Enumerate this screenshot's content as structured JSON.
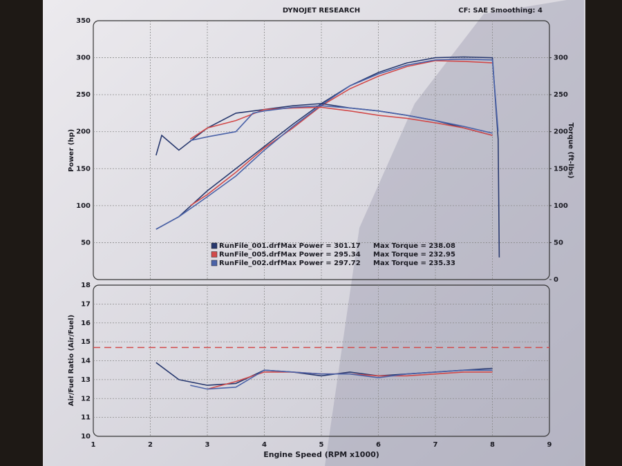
{
  "chart_data": [
    {
      "type": "line",
      "title": "DYNOJET RESEARCH",
      "subtitle": "CF: SAE  Smoothing: 4",
      "y_label": "Power (hp)",
      "y2_label": "Torque (ft-lbs)",
      "xlim": [
        1,
        9
      ],
      "ylim": [
        0,
        350
      ],
      "yticks": [
        50,
        100,
        150,
        200,
        250,
        300,
        350
      ],
      "y2lim": [
        0,
        350
      ],
      "y2ticks": [
        0,
        50,
        100,
        150,
        200,
        250,
        300
      ],
      "grid": true,
      "series": [
        {
          "color": "#27386e",
          "x": [
            2.1,
            2.5,
            3,
            3.5,
            4,
            4.5,
            5,
            5.5,
            6,
            6.5,
            7,
            7.5,
            8,
            8.1,
            8.12
          ],
          "values": [
            68,
            85,
            120,
            150,
            180,
            210,
            238,
            262,
            280,
            293,
            300,
            301,
            300,
            190,
            30
          ]
        },
        {
          "color": "#d24a4a",
          "x": [
            2.7,
            3,
            3.5,
            4,
            4.5,
            5,
            5.5,
            6,
            6.5,
            7,
            7.5,
            8
          ],
          "values": [
            100,
            115,
            145,
            178,
            205,
            235,
            258,
            275,
            288,
            296,
            295,
            293
          ]
        },
        {
          "color": "#4a62a8",
          "x": [
            2.1,
            2.5,
            3,
            3.5,
            4,
            4.5,
            5,
            5.5,
            6,
            6.5,
            7,
            7.5,
            8,
            8.1
          ],
          "values": [
            68,
            85,
            112,
            140,
            175,
            207,
            236,
            262,
            278,
            290,
            297,
            298,
            297,
            200
          ]
        },
        {
          "color": "#27386e",
          "axis": "y2",
          "x": [
            2.1,
            2.2,
            2.5,
            3,
            3.5,
            4,
            4.5,
            5,
            5.5,
            6,
            6.5,
            7,
            7.5,
            8
          ],
          "values": [
            168,
            195,
            175,
            205,
            225,
            230,
            235,
            238,
            232,
            228,
            222,
            215,
            205,
            195
          ]
        },
        {
          "color": "#d24a4a",
          "axis": "y2",
          "x": [
            2.7,
            3,
            3.5,
            4,
            4.5,
            5,
            5.5,
            6,
            6.5,
            7,
            7.5,
            8
          ],
          "values": [
            190,
            205,
            215,
            230,
            232,
            233,
            228,
            222,
            218,
            212,
            205,
            195
          ]
        },
        {
          "color": "#4a62a8",
          "axis": "y2",
          "x": [
            2.7,
            3,
            3.5,
            3.8,
            4,
            4.5,
            5,
            5.5,
            6,
            6.5,
            7,
            7.5,
            8
          ],
          "values": [
            188,
            193,
            200,
            225,
            228,
            233,
            235,
            232,
            228,
            222,
            215,
            207,
            198
          ]
        }
      ],
      "legend": [
        {
          "name": "RunFile_001.drf",
          "power": "Max Power = 301.17",
          "torque": "Max Torque = 238.08",
          "color": "#27386e"
        },
        {
          "name": "RunFile_005.drf",
          "power": "Max Power = 295.34",
          "torque": "Max Torque = 232.95",
          "color": "#d24a4a"
        },
        {
          "name": "RunFile_002.drf",
          "power": "Max Power = 297.72",
          "torque": "Max Torque = 235.33",
          "color": "#4a62a8"
        }
      ]
    },
    {
      "type": "line",
      "x_label": "Engine Speed (RPM x1000)",
      "y_label": "Air/Fuel Ratio (Air/Fuel)",
      "xlim": [
        1,
        9
      ],
      "xticks": [
        1,
        2,
        3,
        4,
        5,
        6,
        7,
        8,
        9
      ],
      "ylim": [
        10,
        18
      ],
      "yticks": [
        10,
        11,
        12,
        13,
        14,
        15,
        16,
        17,
        18
      ],
      "grid": true,
      "reference_line": 14.7,
      "reference_color": "#d24a4a",
      "series": [
        {
          "color": "#27386e",
          "x": [
            2.1,
            2.5,
            3,
            3.5,
            4,
            4.5,
            5,
            5.5,
            6,
            6.5,
            7,
            7.5,
            8
          ],
          "values": [
            13.9,
            13.0,
            12.7,
            12.8,
            13.5,
            13.4,
            13.2,
            13.4,
            13.2,
            13.3,
            13.4,
            13.5,
            13.6
          ]
        },
        {
          "color": "#d24a4a",
          "x": [
            3,
            3.5,
            4,
            4.5,
            5,
            5.5,
            6,
            6.5,
            7,
            7.5,
            8
          ],
          "values": [
            12.5,
            12.9,
            13.4,
            13.4,
            13.3,
            13.3,
            13.2,
            13.2,
            13.3,
            13.4,
            13.4
          ]
        },
        {
          "color": "#4a62a8",
          "x": [
            2.7,
            3,
            3.5,
            4,
            4.5,
            5,
            5.5,
            6,
            6.5,
            7,
            7.5,
            8
          ],
          "values": [
            12.7,
            12.5,
            12.6,
            13.5,
            13.4,
            13.3,
            13.3,
            13.1,
            13.3,
            13.4,
            13.5,
            13.5
          ]
        }
      ]
    }
  ]
}
